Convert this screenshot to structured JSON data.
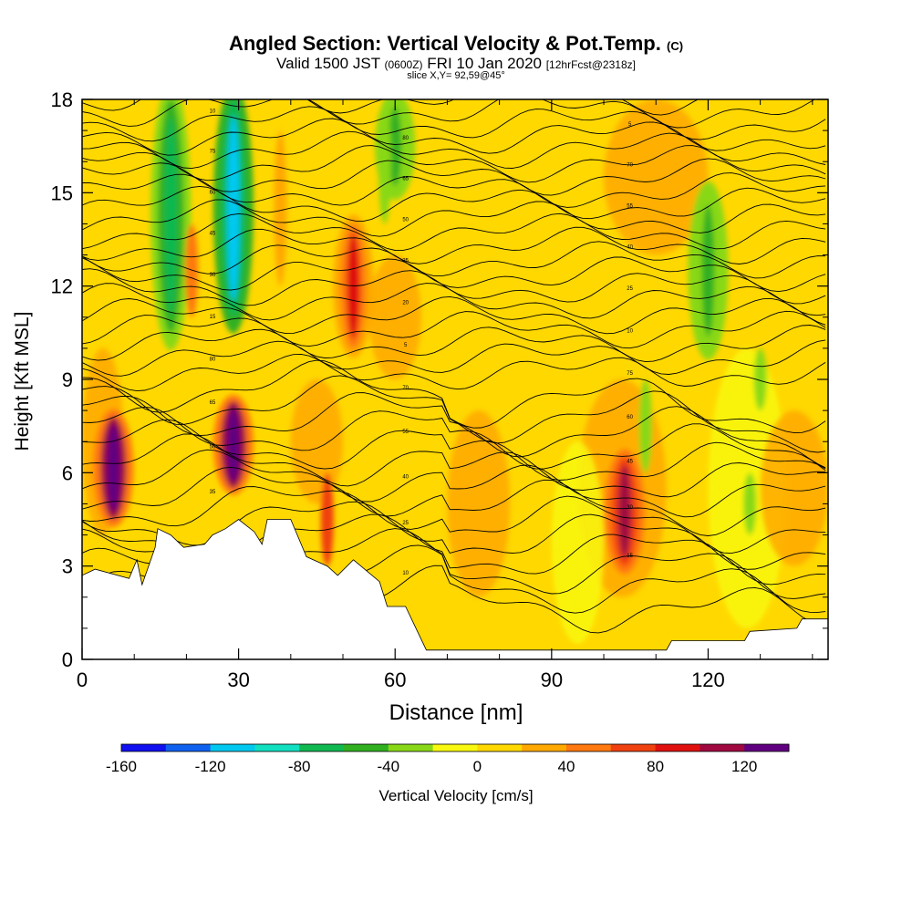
{
  "title": {
    "main": "Angled Section: Vertical Velocity & Pot.Temp.",
    "mark": "(C)",
    "valid_pre": "Valid 1500 JST",
    "valid_z": "(0600Z)",
    "valid_date": "FRI 10 Jan 2020",
    "valid_fcst": "[12hrFcst@2318z]",
    "slice": "slice X,Y= 92,59@45°"
  },
  "chart_data": {
    "type": "heatmap",
    "xlabel": "Distance [nm]",
    "ylabel": "Height [Kft MSL]",
    "xlim": [
      0,
      143
    ],
    "ylim": [
      0,
      18
    ],
    "x_ticks": [
      0,
      30,
      60,
      90,
      120
    ],
    "y_ticks": [
      0,
      3,
      6,
      9,
      12,
      15,
      18
    ],
    "colorbar": {
      "label": "Vertical Velocity [cm/s]",
      "ticks": [
        -160,
        -120,
        -80,
        -40,
        0,
        40,
        80,
        120
      ],
      "range": [
        -160,
        140
      ],
      "step": 20,
      "colors": [
        "#1010f0",
        "#1060f0",
        "#00c8f0",
        "#10e0c0",
        "#10b850",
        "#30b020",
        "#88d818",
        "#f8f810",
        "#ffd800",
        "#ffa800",
        "#ff7810",
        "#f04010",
        "#e01010",
        "#a00840",
        "#600080"
      ]
    },
    "field_summary": {
      "background_cm_s": 10,
      "updrafts": [
        {
          "x": 6,
          "z": [
            4.5,
            7.8
          ],
          "max_cm_s": 140
        },
        {
          "x": 29,
          "z": [
            5.5,
            8.3
          ],
          "max_cm_s": 140
        },
        {
          "x": 104,
          "z": [
            3,
            6.5
          ],
          "max_cm_s": 100
        },
        {
          "x": 52,
          "z": [
            10,
            14
          ],
          "max_cm_s": 70
        }
      ],
      "downdrafts": [
        {
          "x": 17,
          "z": [
            10.5,
            18
          ],
          "min_cm_s": -60
        },
        {
          "x": 29,
          "z": [
            11,
            18
          ],
          "min_cm_s": -100
        },
        {
          "x": 60,
          "z": [
            15,
            18
          ],
          "min_cm_s": -40
        },
        {
          "x": 120,
          "z": [
            10,
            15
          ],
          "min_cm_s": -40
        }
      ]
    },
    "terrain_kft": [
      [
        0,
        2.7
      ],
      [
        2.5,
        2.9
      ],
      [
        9,
        2.6
      ],
      [
        10.5,
        3.2
      ],
      [
        11.5,
        2.4
      ],
      [
        14,
        3.6
      ],
      [
        14.5,
        4.2
      ],
      [
        17,
        4.0
      ],
      [
        19.5,
        3.6
      ],
      [
        23.5,
        3.7
      ],
      [
        25,
        4.0
      ],
      [
        27.5,
        4.2
      ],
      [
        30,
        4.5
      ],
      [
        33,
        4.1
      ],
      [
        34.5,
        3.7
      ],
      [
        35.5,
        4.5
      ],
      [
        40,
        4.5
      ],
      [
        41,
        4.1
      ],
      [
        43,
        3.3
      ],
      [
        47,
        3.0
      ],
      [
        49,
        2.7
      ],
      [
        52,
        3.2
      ],
      [
        57,
        2.5
      ],
      [
        58.5,
        1.7
      ],
      [
        62,
        1.7
      ],
      [
        64,
        1.0
      ],
      [
        66,
        0.3
      ],
      [
        75,
        0.3
      ],
      [
        100,
        0.3
      ],
      [
        112,
        0.3
      ],
      [
        113,
        0.6
      ],
      [
        127,
        0.6
      ],
      [
        128,
        0.9
      ],
      [
        137,
        1.0
      ],
      [
        138,
        1.3
      ],
      [
        143,
        1.3
      ]
    ],
    "isentropes_c": {
      "labels": [
        "5",
        "10",
        "15",
        "20",
        "25",
        "30",
        "35",
        "40",
        "45",
        "50",
        "55",
        "60",
        "65",
        "70",
        "75",
        "80"
      ]
    }
  }
}
